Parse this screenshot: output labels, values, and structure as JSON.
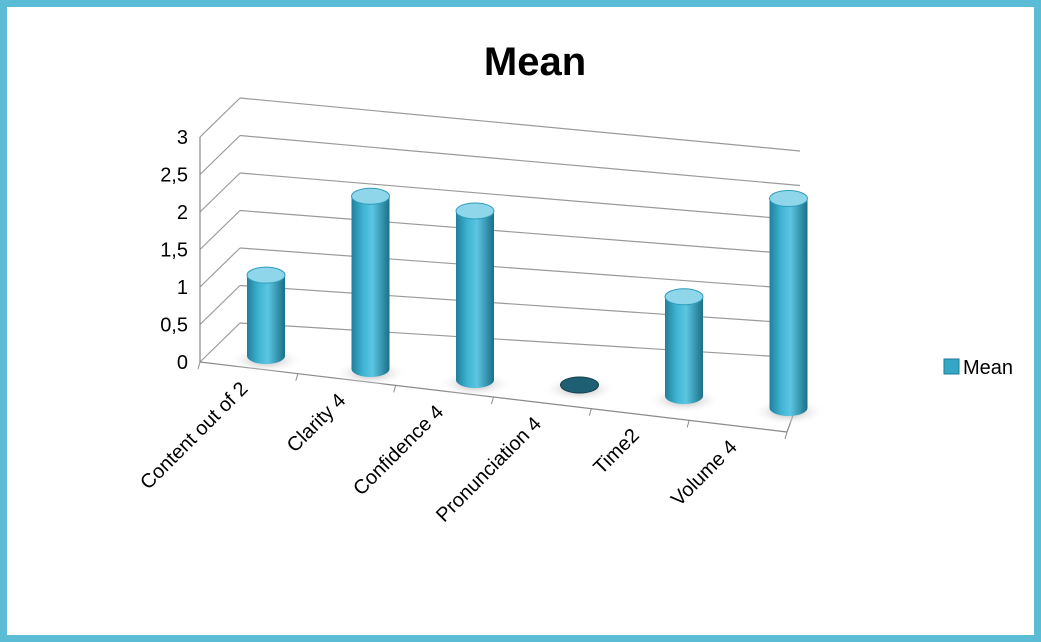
{
  "chart_data": {
    "type": "bar",
    "title": "Mean",
    "categories": [
      "Content out of 2",
      "Clarity 4",
      "Confidence 4",
      "Pronunciation 4",
      "Time2",
      "Volume 4"
    ],
    "series": [
      {
        "name": "Mean",
        "values": [
          1.1,
          2.35,
          2.3,
          0,
          1.35,
          2.85
        ]
      }
    ],
    "y_ticks": [
      "0",
      "0,5",
      "1",
      "1,5",
      "2",
      "2,5",
      "3"
    ],
    "ylim": [
      0,
      3
    ],
    "grid": true,
    "legend_position": "right",
    "colors": {
      "bar": "#35a7c6",
      "bar_dark": "#1c7d98",
      "bar_light": "#8fd6ea",
      "zero_bar": "#1e5f73",
      "frame": "#5bbcd6"
    }
  }
}
